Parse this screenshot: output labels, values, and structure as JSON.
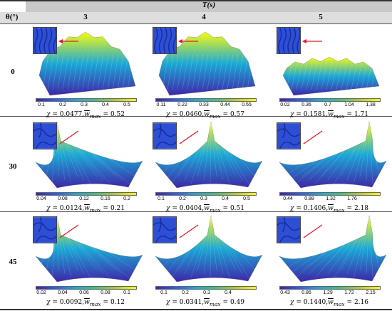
{
  "header": {
    "t_label": "T(s)",
    "theta_label": "θ(°)",
    "columns": [
      "3",
      "4",
      "5"
    ]
  },
  "rows": [
    {
      "theta": "0",
      "cells": [
        {
          "ticks": [
            "0.1",
            "0.2",
            "0.3",
            "0.4",
            "0.5"
          ],
          "chi": "0.0477",
          "wmax": "0.52"
        },
        {
          "ticks": [
            "0.11",
            "0.22",
            "0.33",
            "0.44",
            "0.55"
          ],
          "chi": "0.0460",
          "wmax": "0.57"
        },
        {
          "ticks": [
            "0.02",
            "0.36",
            "0.7",
            "1.04",
            "1.38"
          ],
          "chi": "0.1581",
          "wmax": "1.71"
        }
      ]
    },
    {
      "theta": "30",
      "cells": [
        {
          "ticks": [
            "0.04",
            "0.08",
            "0.12",
            "0.16",
            "0.2"
          ],
          "chi": "0.0124",
          "wmax": "0.21"
        },
        {
          "ticks": [
            "0.1",
            "0.2",
            "0.3",
            "0.4",
            "0.5"
          ],
          "chi": "0.0404",
          "wmax": "0.51"
        },
        {
          "ticks": [
            "0.44",
            "0.88",
            "1.32",
            "1.76"
          ],
          "chi": "0.1406",
          "wmax": "2.18"
        }
      ]
    },
    {
      "theta": "45",
      "cells": [
        {
          "ticks": [
            "0.02",
            "0.04",
            "0.06",
            "0.08",
            "0.1"
          ],
          "chi": "0.0092",
          "wmax": "0.12"
        },
        {
          "ticks": [
            "0.1",
            "0.2",
            "0.3",
            "0.4"
          ],
          "chi": "0.0341",
          "wmax": "0.49"
        },
        {
          "ticks": [
            "0.43",
            "0.86",
            "1.29",
            "1.72",
            "2.15"
          ],
          "chi": "0.1440",
          "wmax": "2.16"
        }
      ]
    }
  ],
  "caption_parts": {
    "chi_symbol": "χ",
    "equals": " = ",
    "comma": ",",
    "w": "w",
    "max_sub": "max"
  },
  "colors": {
    "surface_low": "#3e26a8",
    "surface_mid": "#1aa8d6",
    "surface_high": "#f9fb0e",
    "arrow": "#e8182c"
  }
}
